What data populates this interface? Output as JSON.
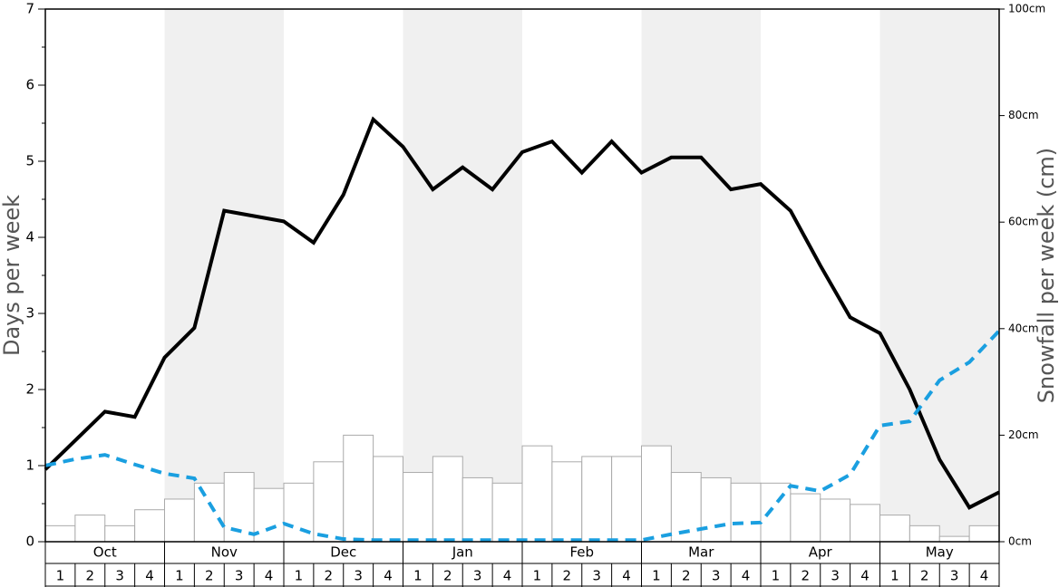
{
  "chart_data": {
    "type": "bar",
    "y_label": "Days per week",
    "y2_label": "Snowfall per week (cm)",
    "months": [
      "Oct",
      "Nov",
      "Dec",
      "Jan",
      "Feb",
      "Mar",
      "Apr",
      "May"
    ],
    "categories": [
      "1",
      "2",
      "3",
      "4",
      "1",
      "2",
      "3",
      "4",
      "1",
      "2",
      "3",
      "4",
      "1",
      "2",
      "3",
      "4",
      "1",
      "2",
      "3",
      "4",
      "1",
      "2",
      "3",
      "4",
      "1",
      "2",
      "3",
      "4",
      "1",
      "2",
      "3",
      "4"
    ],
    "series": [
      {
        "type": "bar",
        "axis": "y2",
        "color": "#ffffff",
        "values": [
          3,
          5,
          3,
          6,
          8,
          11,
          13,
          10,
          11,
          15,
          20,
          16,
          13,
          16,
          12,
          11,
          18,
          15,
          16,
          16,
          18,
          13,
          12,
          11,
          11,
          9,
          8,
          7,
          5,
          3,
          1,
          3
        ]
      },
      {
        "type": "line",
        "color": "#000000",
        "x": [
          0,
          1,
          2,
          3,
          4,
          5,
          6,
          7,
          8,
          9,
          10,
          11,
          12,
          13,
          14,
          15,
          16,
          17,
          18,
          19,
          20,
          21,
          22,
          23,
          24,
          25,
          26,
          27,
          28,
          29,
          30,
          31,
          32
        ],
        "values": [
          0.95,
          1.33,
          1.71,
          1.64,
          2.42,
          2.81,
          4.35,
          4.28,
          4.21,
          3.93,
          4.56,
          5.55,
          5.19,
          4.63,
          4.92,
          4.63,
          5.12,
          5.26,
          4.85,
          5.26,
          4.85,
          5.05,
          5.05,
          4.63,
          4.7,
          4.35,
          3.63,
          2.95,
          2.74,
          2.0,
          1.08,
          0.45,
          0.65
        ]
      },
      {
        "type": "line",
        "axis": "y2",
        "color": "#1a9fe0",
        "dashed": true,
        "x": [
          0,
          1,
          2,
          3,
          4,
          5,
          6,
          7,
          8,
          9,
          10,
          11,
          12,
          13,
          14,
          15,
          16,
          17,
          18,
          19,
          20,
          21,
          22,
          23,
          24,
          25,
          26,
          27,
          28,
          29,
          30,
          31,
          32
        ],
        "values": [
          14.3,
          15.5,
          16.3,
          14.5,
          12.8,
          11.9,
          2.7,
          1.4,
          3.4,
          1.5,
          0.5,
          0.3,
          0.3,
          0.3,
          0.3,
          0.3,
          0.3,
          0.3,
          0.3,
          0.3,
          0.3,
          1.4,
          2.4,
          3.4,
          3.6,
          10.5,
          9.5,
          12.6,
          21.8,
          22.6,
          30.3,
          33.7,
          39.6
        ]
      }
    ],
    "xlim": [
      0,
      32
    ],
    "ylim": [
      0,
      7
    ],
    "yticks": [
      0,
      1,
      2,
      3,
      4,
      5,
      6,
      7
    ],
    "y2lim": [
      0,
      100
    ],
    "y2ticks": [
      {
        "value": 0,
        "label": "0cm"
      },
      {
        "value": 20,
        "label": "20cm"
      },
      {
        "value": 40,
        "label": "40cm"
      },
      {
        "value": 60,
        "label": "60cm"
      },
      {
        "value": 80,
        "label": "80cm"
      },
      {
        "value": 100,
        "label": "100cm"
      }
    ]
  }
}
